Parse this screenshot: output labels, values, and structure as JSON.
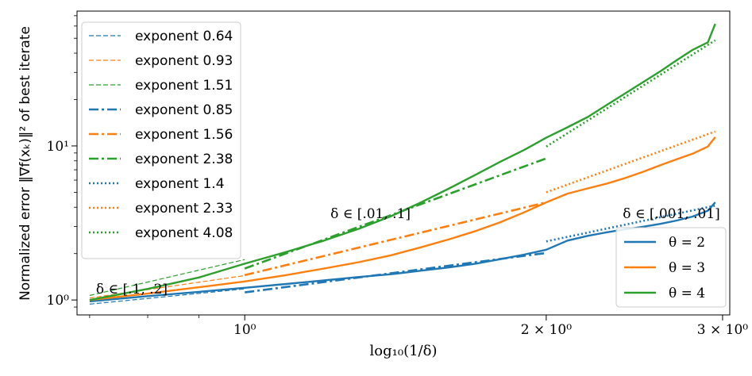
{
  "chart_data": {
    "type": "line",
    "xscale": "log",
    "yscale": "log",
    "xlabel": "log₁₀(1/δ)",
    "ylabel": "Normalized error ‖∇f(xₖ)‖² of best iterate",
    "xlim": [
      0.68,
      3.05
    ],
    "ylim": [
      0.8,
      75
    ],
    "xticks": [
      {
        "value": 1,
        "label": "10⁰"
      },
      {
        "value": 2,
        "label": "2 × 10⁰"
      },
      {
        "value": 3,
        "label": "3 × 10⁰"
      }
    ],
    "yticks": [
      {
        "value": 1,
        "label": "10⁰"
      },
      {
        "value": 10,
        "label": "10¹"
      }
    ],
    "series": [
      {
        "name": "θ = 2",
        "color": "#1f77b4",
        "x": [
          0.7,
          0.8,
          0.9,
          1.0,
          1.1,
          1.2,
          1.3,
          1.4,
          1.5,
          1.6,
          1.7,
          1.8,
          1.9,
          2.0,
          2.1,
          2.2,
          2.3,
          2.4,
          2.5,
          2.6,
          2.7,
          2.8,
          2.9,
          2.95
        ],
        "y": [
          0.98,
          1.06,
          1.13,
          1.2,
          1.27,
          1.34,
          1.41,
          1.47,
          1.55,
          1.63,
          1.72,
          1.84,
          1.97,
          2.12,
          2.43,
          2.61,
          2.75,
          2.88,
          2.99,
          3.12,
          3.28,
          3.48,
          3.8,
          4.3
        ]
      },
      {
        "name": "θ = 3",
        "color": "#ff7f0e",
        "x": [
          0.7,
          0.8,
          0.9,
          1.0,
          1.1,
          1.2,
          1.3,
          1.4,
          1.5,
          1.6,
          1.7,
          1.8,
          1.9,
          2.0,
          2.1,
          2.2,
          2.3,
          2.4,
          2.5,
          2.6,
          2.7,
          2.8,
          2.9,
          2.95
        ],
        "y": [
          1.0,
          1.1,
          1.21,
          1.32,
          1.45,
          1.6,
          1.76,
          1.95,
          2.2,
          2.48,
          2.8,
          3.2,
          3.7,
          4.3,
          4.9,
          5.3,
          5.7,
          6.2,
          6.8,
          7.5,
          8.2,
          8.9,
          9.9,
          11.4
        ]
      },
      {
        "name": "θ = 4",
        "color": "#2ca02c",
        "x": [
          0.7,
          0.8,
          0.9,
          1.0,
          1.1,
          1.2,
          1.3,
          1.4,
          1.5,
          1.6,
          1.7,
          1.8,
          1.9,
          2.0,
          2.1,
          2.2,
          2.3,
          2.4,
          2.5,
          2.6,
          2.7,
          2.8,
          2.9,
          2.95
        ],
        "y": [
          1.0,
          1.18,
          1.4,
          1.72,
          2.05,
          2.43,
          2.9,
          3.5,
          4.3,
          5.3,
          6.5,
          7.9,
          9.4,
          11.3,
          13.2,
          15.4,
          18.5,
          22.0,
          26.0,
          30.5,
          36.0,
          42.0,
          47.0,
          62.0
        ]
      }
    ],
    "fits": [
      {
        "legend": "exponent 0.64",
        "color": "#1f77b4",
        "style": "dashed",
        "x": [
          0.7,
          1.0
        ],
        "y": [
          0.94,
          1.18
        ]
      },
      {
        "legend": "exponent 0.93",
        "color": "#ff7f0e",
        "style": "dashed",
        "x": [
          0.7,
          1.0
        ],
        "y": [
          1.03,
          1.44
        ]
      },
      {
        "legend": "exponent 1.51",
        "color": "#2ca02c",
        "style": "dashed",
        "x": [
          0.7,
          1.0
        ],
        "y": [
          1.07,
          1.83
        ]
      },
      {
        "legend": "exponent 0.85",
        "color": "#1f77b4",
        "style": "dashdot",
        "x": [
          1.0,
          2.0
        ],
        "y": [
          1.12,
          2.02
        ]
      },
      {
        "legend": "exponent 1.56",
        "color": "#ff7f0e",
        "style": "dashdot",
        "x": [
          1.0,
          2.0
        ],
        "y": [
          1.45,
          4.3
        ]
      },
      {
        "legend": "exponent 2.38",
        "color": "#2ca02c",
        "style": "dashdot",
        "x": [
          1.0,
          2.0
        ],
        "y": [
          1.6,
          8.3
        ]
      },
      {
        "legend": "exponent 1.4",
        "color": "#1f77b4",
        "style": "dotted",
        "x": [
          2.0,
          2.95
        ],
        "y": [
          2.4,
          4.1
        ]
      },
      {
        "legend": "exponent 2.33",
        "color": "#ff7f0e",
        "style": "dotted",
        "x": [
          2.0,
          2.95
        ],
        "y": [
          5.0,
          12.4
        ]
      },
      {
        "legend": "exponent 4.08",
        "color": "#2ca02c",
        "style": "dotted",
        "x": [
          2.0,
          2.95
        ],
        "y": [
          9.9,
          48.5
        ]
      }
    ],
    "annotations": [
      {
        "text": "δ ∈ [.1, .2]",
        "x": 0.7,
        "y": 1.1
      },
      {
        "text": "δ ∈ [.01, .1]",
        "x": 1.2,
        "y": 3.4
      },
      {
        "text": "δ ∈ [.001, .01]",
        "x": 2.35,
        "y": 3.4
      }
    ],
    "legend_left": {
      "placement": "top-left"
    },
    "legend_right": {
      "placement": "lower-right"
    }
  }
}
